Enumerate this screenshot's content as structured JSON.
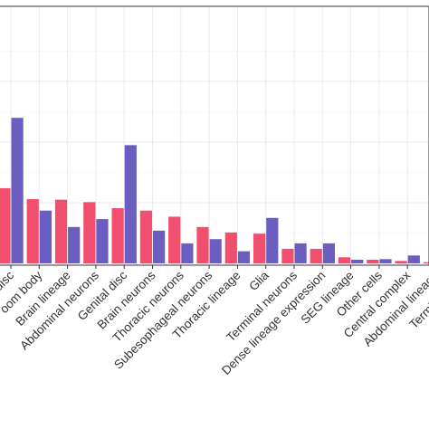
{
  "chart_data": {
    "type": "bar",
    "categories": [
      "disc",
      "Mushroom body",
      "Brain lineage",
      "Abdominal neurons",
      "Genital disc",
      "Brain neurons",
      "Thoracic neurons",
      "Subesophageal neurons",
      "Thoracic lineage",
      "Glia",
      "Terminal neurons",
      "Dense lineage expression",
      "SEG lineage",
      "Other cells",
      "Central complex",
      "Abdominal lineage",
      "Terminal lineage"
    ],
    "tick_labels": [
      "disc",
      "oom body",
      "Brain lineage",
      "Abdominal neurons",
      "Genital disc",
      "Brain neurons",
      "Thoracic neurons",
      "Subesophageal neurons",
      "Thoracic lineage",
      "Glia",
      "Terminal neurons",
      "Dense lineage expression",
      "SEG lineage",
      "Other cells",
      "Central complex",
      "Abdominal lineage",
      "Terminal linea"
    ],
    "series": [
      {
        "color": "#f0506e",
        "values": [
          62,
          53,
          52.5,
          50.5,
          45.5,
          43.5,
          38.5,
          30,
          25.5,
          24.5,
          12,
          12,
          5,
          3,
          2,
          1,
          0
        ]
      },
      {
        "color": "#6a5fc1",
        "values": [
          120,
          43.5,
          30,
          36.5,
          97.5,
          27,
          16.5,
          20,
          10,
          37.5,
          16.5,
          16.5,
          3,
          3.5,
          6.5,
          0,
          0
        ]
      }
    ],
    "ylim": [
      0,
      180
    ],
    "grid": true,
    "legend": "none",
    "title": "",
    "xlabel": "",
    "ylabel": ""
  }
}
